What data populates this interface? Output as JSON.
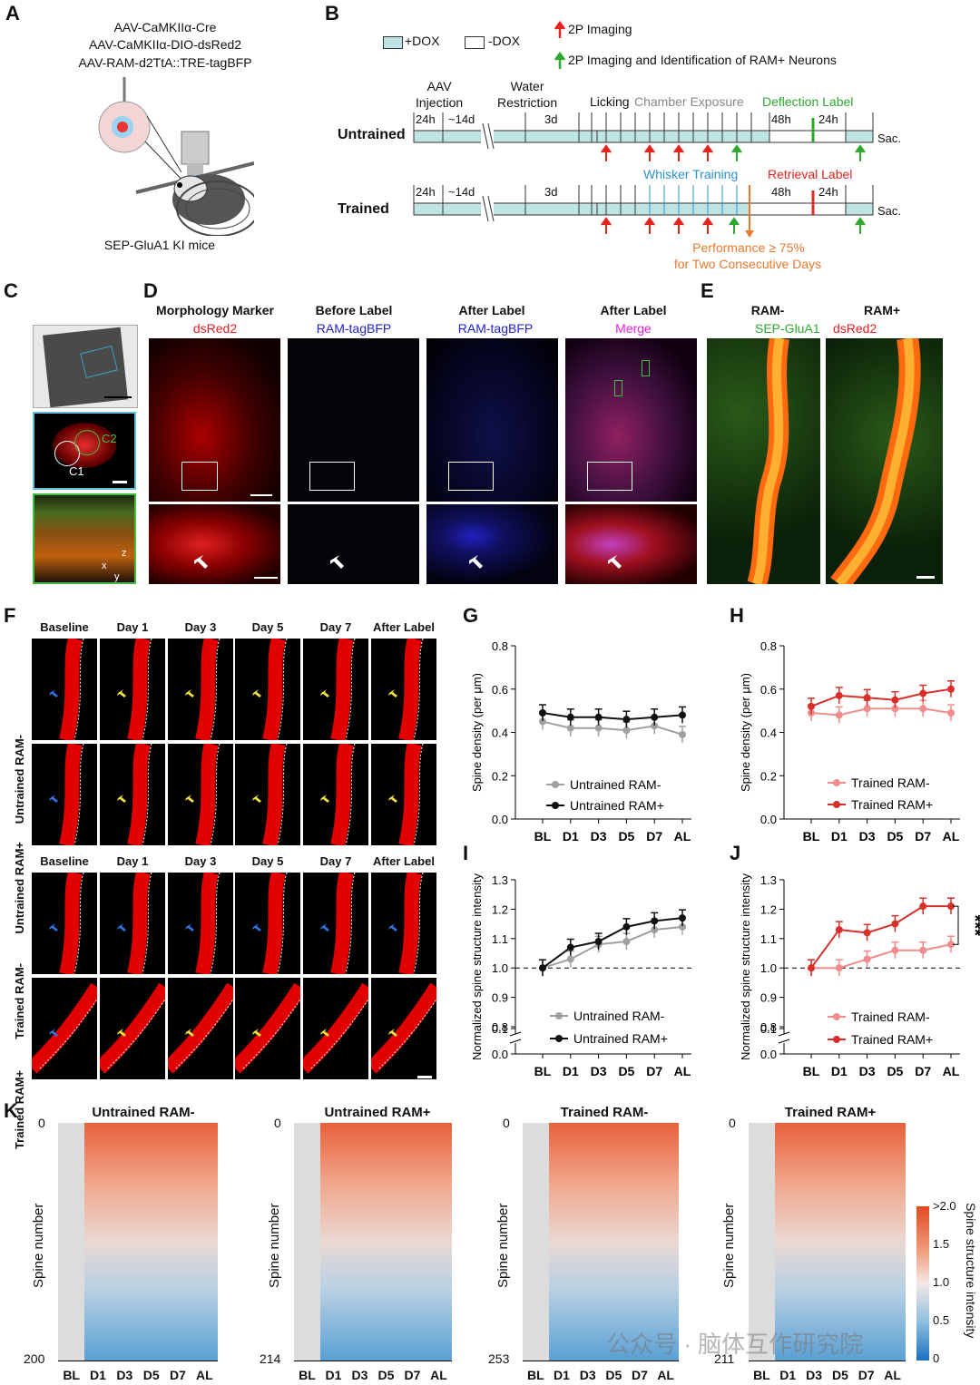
{
  "panels": {
    "A": "A",
    "B": "B",
    "C": "C",
    "D": "D",
    "E": "E",
    "F": "F",
    "G": "G",
    "H": "H",
    "I": "I",
    "J": "J",
    "K": "K"
  },
  "panelA": {
    "virus1": "AAV-CaMKIIα-Cre",
    "virus2": "AAV-CaMKIIα-DIO-dsRed2",
    "virus3": "AAV-RAM-d2TtA::TRE-tagBFP",
    "mice": "SEP-GluA1 KI mice"
  },
  "panelB": {
    "legend_dox_on": "+DOX",
    "legend_dox_off": "-DOX",
    "legend_red": "2P Imaging",
    "legend_green": "2P Imaging  and Identification of RAM+ Neurons",
    "aav": "AAV\nInjection",
    "water": "Water\nRestriction",
    "licking": "Licking",
    "chamber": "Chamber Exposure",
    "deflection": "Deflection Label",
    "whisker": "Whisker Training",
    "retrieval": "Retrieval Label",
    "t24h": "24h",
    "t14d": "~14d",
    "t3d": "3d",
    "t48h": "48h",
    "t24h_b": "24h",
    "untrained": "Untrained",
    "trained": "Trained",
    "sac": "Sac.",
    "performance": "Performance ≥ 75%",
    "consecutive": "for Two Consecutive Days",
    "colors": {
      "dox": "#bfe3e3",
      "red": "#e8221e",
      "green": "#2fa832",
      "blue": "#2b8fd6",
      "orange": "#e8792e",
      "chamber": "#888888"
    }
  },
  "panelC": {
    "c1": "C1",
    "c2": "C2",
    "axis_x": "x",
    "axis_y": "y",
    "axis_z": "z"
  },
  "panelD": {
    "col1_title": "Morphology Marker",
    "col1_sub": "dsRed2",
    "col2_title": "Before Label",
    "col2_sub": "RAM-tagBFP",
    "col3_title": "After Label",
    "col3_sub": "RAM-tagBFP",
    "col4_title": "After Label",
    "col4_sub": "Merge"
  },
  "panelE": {
    "ram_neg": "RAM-",
    "ram_pos": "RAM+",
    "sep": "SEP-GluA1",
    "dsred": "dsRed2"
  },
  "panelF": {
    "cols": [
      "Baseline",
      "Day 1",
      "Day 3",
      "Day 5",
      "Day 7",
      "After Label"
    ],
    "rows": [
      "Untrained RAM-",
      "Untrained RAM+",
      "Trained RAM-",
      "Trained RAM+"
    ]
  },
  "chart_data": [
    {
      "panel": "G",
      "type": "line",
      "ylabel": "Spine density (per μm)",
      "ylim": [
        0,
        0.8
      ],
      "yticks": [
        "0.0",
        "0.2",
        "0.4",
        "0.6",
        "0.8"
      ],
      "categories": [
        "BL",
        "D1",
        "D3",
        "D5",
        "D7",
        "AL"
      ],
      "series": [
        {
          "name": "Untrained RAM-",
          "color": "#a0a0a0",
          "values": [
            0.45,
            0.42,
            0.42,
            0.41,
            0.43,
            0.39
          ]
        },
        {
          "name": "Untrained RAM+",
          "color": "#111111",
          "values": [
            0.49,
            0.47,
            0.47,
            0.46,
            0.47,
            0.48
          ]
        }
      ]
    },
    {
      "panel": "H",
      "type": "line",
      "ylabel": "Spine density (per μm)",
      "ylim": [
        0,
        0.8
      ],
      "yticks": [
        "0.0",
        "0.2",
        "0.4",
        "0.6",
        "0.8"
      ],
      "categories": [
        "BL",
        "D1",
        "D3",
        "D5",
        "D7",
        "AL"
      ],
      "series": [
        {
          "name": "Trained RAM-",
          "color": "#f08c8c",
          "values": [
            0.49,
            0.48,
            0.51,
            0.51,
            0.51,
            0.49
          ]
        },
        {
          "name": "Trained RAM+",
          "color": "#d7302a",
          "values": [
            0.52,
            0.57,
            0.56,
            0.55,
            0.58,
            0.6
          ]
        }
      ]
    },
    {
      "panel": "I",
      "type": "line",
      "ylabel": "Normalized spine structure intensity",
      "yticks": [
        "0.0",
        "0.1",
        "0.8",
        "0.9",
        "1.0",
        "1.1",
        "1.2",
        "1.3"
      ],
      "categories": [
        "BL",
        "D1",
        "D3",
        "D5",
        "D7",
        "AL"
      ],
      "reference_line": 1.0,
      "series": [
        {
          "name": "Untrained RAM-",
          "color": "#a0a0a0",
          "values": [
            1.0,
            1.03,
            1.08,
            1.09,
            1.13,
            1.14
          ]
        },
        {
          "name": "Untrained RAM+",
          "color": "#111111",
          "values": [
            1.0,
            1.07,
            1.09,
            1.14,
            1.16,
            1.17
          ]
        }
      ]
    },
    {
      "panel": "J",
      "type": "line",
      "ylabel": "Normalized spine structure intensity",
      "yticks": [
        "0.0",
        "0.1",
        "0.8",
        "0.9",
        "1.0",
        "1.1",
        "1.2",
        "1.3"
      ],
      "categories": [
        "BL",
        "D1",
        "D3",
        "D5",
        "D7",
        "AL"
      ],
      "reference_line": 1.0,
      "annotation": "***",
      "series": [
        {
          "name": "Trained RAM-",
          "color": "#f08c8c",
          "values": [
            1.0,
            1.0,
            1.03,
            1.06,
            1.06,
            1.08
          ]
        },
        {
          "name": "Trained RAM+",
          "color": "#d7302a",
          "values": [
            1.0,
            1.13,
            1.12,
            1.15,
            1.21,
            1.21
          ]
        }
      ]
    },
    {
      "panel": "K",
      "type": "heatmap",
      "ylabel": "Spine number",
      "categories": [
        "BL",
        "D1",
        "D3",
        "D5",
        "D7",
        "AL"
      ],
      "maps": [
        {
          "title": "Untrained RAM-",
          "ymax": "200"
        },
        {
          "title": "Untrained RAM+",
          "ymax": "214"
        },
        {
          "title": "Trained RAM-",
          "ymax": "253"
        },
        {
          "title": "Trained RAM+",
          "ymax": "211"
        }
      ],
      "colorbar": {
        "label": "Spine structure intensity",
        "ticks": [
          ">2.0",
          "1.5",
          "1.0",
          "0.5",
          "0"
        ]
      }
    }
  ],
  "watermark": "公众号 · 脑体互作研究院"
}
